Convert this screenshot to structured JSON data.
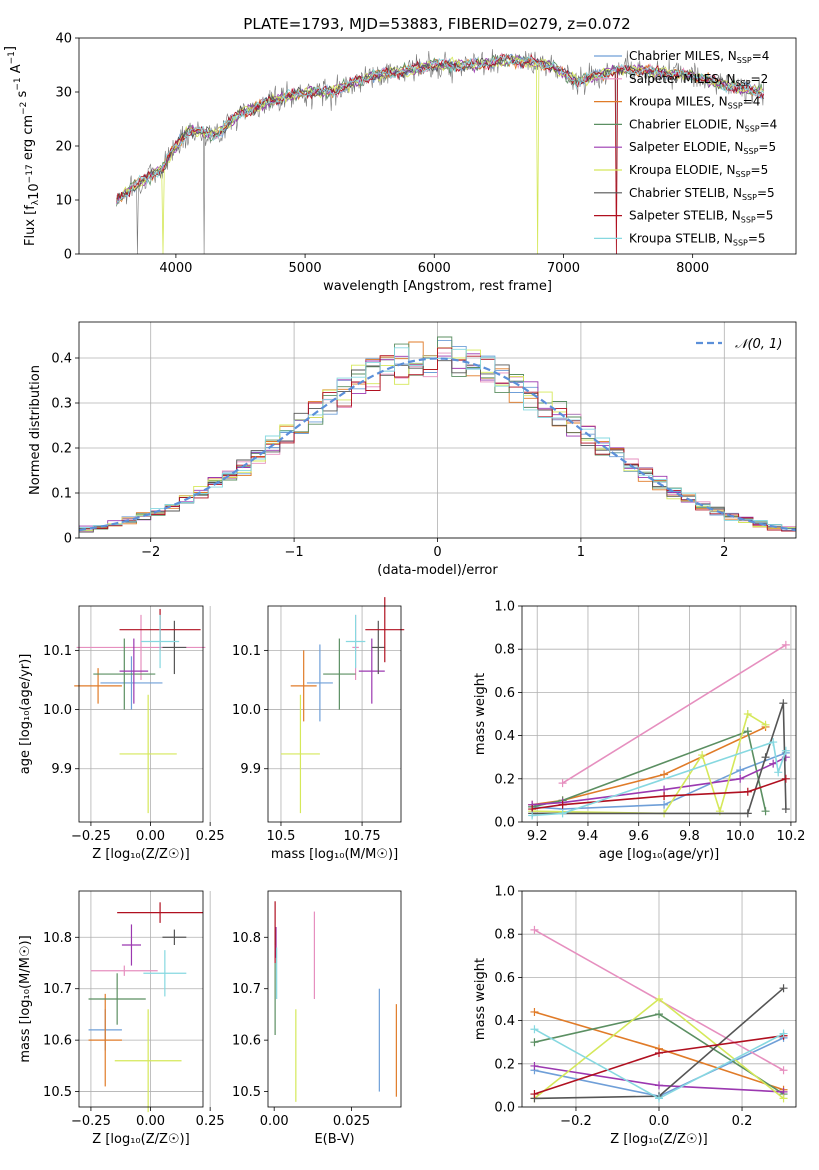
{
  "figure_title": "PLATE=1793, MJD=53883, FIBERID=0279, z=0.072",
  "model_colors": [
    "#6f9fd8",
    "#e68fbf",
    "#e07b28",
    "#5b8f62",
    "#9b38b0",
    "#d5e85a",
    "#555555",
    "#b01020",
    "#86d8e0"
  ],
  "legend_models": [
    {
      "name": "Chabrier MILES",
      "nssp": "4"
    },
    {
      "name": "Salpeter MILES",
      "nssp": "2"
    },
    {
      "name": "Kroupa MILES",
      "nssp": "4"
    },
    {
      "name": "Chabrier ELODIE",
      "nssp": "4"
    },
    {
      "name": "Salpeter ELODIE",
      "nssp": "5"
    },
    {
      "name": "Kroupa ELODIE",
      "nssp": "5"
    },
    {
      "name": "Chabrier STELIB",
      "nssp": "5"
    },
    {
      "name": "Salpeter STELIB",
      "nssp": "5"
    },
    {
      "name": "Kroupa STELIB",
      "nssp": "5"
    }
  ],
  "chart_data": [
    {
      "id": "spectrum",
      "type": "line",
      "xlabel": "wavelength [Angstrom, rest frame]",
      "ylabel": "Flux [f",
      "xlim": [
        3250,
        8800
      ],
      "ylim": [
        0,
        40
      ],
      "xticks": [
        4000,
        5000,
        6000,
        7000,
        8000
      ],
      "yticks": [
        0,
        10,
        20,
        30,
        40
      ],
      "grid": false,
      "legend": "right",
      "continuum": [
        [
          3540,
          10
        ],
        [
          3700,
          13
        ],
        [
          3900,
          16
        ],
        [
          4000,
          20
        ],
        [
          4100,
          23
        ],
        [
          4300,
          22
        ],
        [
          4500,
          26
        ],
        [
          4700,
          28
        ],
        [
          5000,
          30
        ],
        [
          5200,
          30
        ],
        [
          5500,
          33
        ],
        [
          5800,
          34
        ],
        [
          6000,
          35
        ],
        [
          6300,
          35
        ],
        [
          6600,
          36
        ],
        [
          6900,
          35
        ],
        [
          7100,
          32
        ],
        [
          7400,
          34
        ],
        [
          7600,
          34
        ],
        [
          8000,
          33
        ],
        [
          8300,
          31
        ],
        [
          8550,
          30
        ]
      ]
    },
    {
      "id": "residuals",
      "type": "histogram",
      "xlabel": "(data-model)/error",
      "ylabel": "Normed distribution",
      "xlim": [
        -2.5,
        2.5
      ],
      "ylim": [
        0,
        0.48
      ],
      "xticks": [
        -2,
        -1,
        0,
        1,
        2
      ],
      "yticks": [
        0,
        0.1,
        0.2,
        0.3,
        0.4
      ],
      "grid": true,
      "legend": "top-right",
      "reference_curve": "𝒩(0, 1)",
      "bin_edges": [
        -2.5,
        2.5
      ],
      "bins": 50
    },
    {
      "id": "age-vs-Z",
      "type": "scatter",
      "xlabel": "Z [log₁₀(Z/Z☉)]",
      "ylabel": "age  [log₁₀(age/yr)]",
      "xlim": [
        -0.3,
        0.22
      ],
      "ylim": [
        9.81,
        10.175
      ],
      "xticks": [
        -0.25,
        0,
        0.25
      ],
      "yticks": [
        9.9,
        10.0,
        10.1
      ],
      "grid": true,
      "points": [
        {
          "x": -0.08,
          "xerr": 0.13,
          "y": 10.045,
          "yerr": 0.045
        },
        {
          "x": -0.04,
          "xerr": 0.27,
          "y": 10.105,
          "yerr": 0.055
        },
        {
          "x": -0.22,
          "xerr": 0.1,
          "y": 10.04,
          "yerr": 0.03
        },
        {
          "x": -0.11,
          "xerr": 0.13,
          "y": 10.06,
          "yerr": 0.06
        },
        {
          "x": -0.07,
          "xerr": 0.06,
          "y": 10.065,
          "yerr": 0.055
        },
        {
          "x": -0.01,
          "xerr": 0.12,
          "y": 9.925,
          "yerr": 0.1
        },
        {
          "x": 0.1,
          "xerr": 0.05,
          "y": 10.105,
          "yerr": 0.045
        },
        {
          "x": 0.04,
          "xerr": 0.17,
          "y": 10.135,
          "yerr": 0.035
        },
        {
          "x": 0.04,
          "xerr": 0.08,
          "y": 10.115,
          "yerr": 0.045
        }
      ]
    },
    {
      "id": "age-vs-mass",
      "type": "scatter",
      "xlabel": "mass [log₁₀(M/M☉)]",
      "ylabel": "",
      "xlim": [
        10.46,
        10.87
      ],
      "ylim": [
        9.81,
        10.175
      ],
      "xticks": [
        10.5,
        10.75
      ],
      "yticks": [
        9.9,
        10.0,
        10.1
      ],
      "grid": true,
      "points": [
        {
          "x": 10.62,
          "xerr": 0.04,
          "y": 10.045,
          "yerr": 0.065
        },
        {
          "x": 10.73,
          "xerr": 0.01,
          "y": 10.105,
          "yerr": 0.055
        },
        {
          "x": 10.57,
          "xerr": 0.04,
          "y": 10.04,
          "yerr": 0.06
        },
        {
          "x": 10.68,
          "xerr": 0.05,
          "y": 10.06,
          "yerr": 0.06
        },
        {
          "x": 10.78,
          "xerr": 0.04,
          "y": 10.065,
          "yerr": 0.055
        },
        {
          "x": 10.56,
          "xerr": 0.06,
          "y": 9.925,
          "yerr": 0.1
        },
        {
          "x": 10.8,
          "xerr": 0.02,
          "y": 10.105,
          "yerr": 0.045
        },
        {
          "x": 10.82,
          "xerr": 0.06,
          "y": 10.135,
          "yerr": 0.055
        },
        {
          "x": 10.73,
          "xerr": 0.03,
          "y": 10.115,
          "yerr": 0.045
        }
      ]
    },
    {
      "id": "weight-vs-age",
      "type": "line",
      "xlabel": "age  [log₁₀(age/yr)]",
      "ylabel": "mass weight",
      "xlim": [
        9.14,
        10.22
      ],
      "ylim": [
        0,
        1
      ],
      "xticks": [
        9.2,
        9.4,
        9.6,
        9.8,
        10.0,
        10.2
      ],
      "yticks": [
        0,
        0.2,
        0.4,
        0.6,
        0.8,
        1.0
      ],
      "grid": true,
      "series": [
        {
          "x": [
            9.18,
            9.3,
            9.7,
            10.0,
            10.18
          ],
          "y": [
            0.07,
            0.06,
            0.08,
            0.24,
            0.32
          ]
        },
        {
          "x": [
            9.3,
            10.18
          ],
          "y": [
            0.18,
            0.82
          ]
        },
        {
          "x": [
            9.18,
            9.3,
            9.7,
            10.1
          ],
          "y": [
            0.08,
            0.1,
            0.22,
            0.44
          ]
        },
        {
          "x": [
            9.18,
            9.3,
            10.03,
            10.1
          ],
          "y": [
            0.07,
            0.1,
            0.42,
            0.05
          ]
        },
        {
          "x": [
            9.18,
            9.3,
            9.7,
            10.0,
            10.13,
            10.18
          ],
          "y": [
            0.08,
            0.09,
            0.15,
            0.2,
            0.27,
            0.3
          ]
        },
        {
          "x": [
            9.18,
            9.7,
            9.85,
            9.92,
            10.03,
            10.1
          ],
          "y": [
            0.05,
            0.04,
            0.31,
            0.05,
            0.5,
            0.45
          ]
        },
        {
          "x": [
            9.18,
            10.03,
            10.1,
            10.17,
            10.18
          ],
          "y": [
            0.04,
            0.04,
            0.3,
            0.55,
            0.06
          ]
        },
        {
          "x": [
            9.18,
            9.3,
            9.7,
            10.03,
            10.18
          ],
          "y": [
            0.06,
            0.08,
            0.12,
            0.14,
            0.2
          ]
        },
        {
          "x": [
            9.18,
            9.3,
            10.13,
            10.15,
            10.18
          ],
          "y": [
            0.03,
            0.04,
            0.37,
            0.23,
            0.33
          ]
        }
      ]
    },
    {
      "id": "mass-vs-Z",
      "type": "scatter",
      "xlabel": "Z [log₁₀(Z/Z☉)]",
      "ylabel": "mass [log₁₀(M/M☉)]",
      "xlim": [
        -0.3,
        0.22
      ],
      "ylim": [
        10.47,
        10.89
      ],
      "xticks": [
        -0.25,
        0,
        0.25
      ],
      "yticks": [
        10.5,
        10.6,
        10.7,
        10.8
      ],
      "grid": true,
      "points": [
        {
          "x": -0.19,
          "xerr": 0.07,
          "y": 10.62,
          "yerr": 0.04
        },
        {
          "x": -0.11,
          "xerr": 0.14,
          "y": 10.735,
          "yerr": 0.01
        },
        {
          "x": -0.19,
          "xerr": 0.07,
          "y": 10.6,
          "yerr": 0.09
        },
        {
          "x": -0.14,
          "xerr": 0.12,
          "y": 10.68,
          "yerr": 0.05
        },
        {
          "x": -0.08,
          "xerr": 0.04,
          "y": 10.785,
          "yerr": 0.04
        },
        {
          "x": -0.01,
          "xerr": 0.14,
          "y": 10.56,
          "yerr": 0.1
        },
        {
          "x": 0.1,
          "xerr": 0.05,
          "y": 10.8,
          "yerr": 0.015
        },
        {
          "x": 0.04,
          "xerr": 0.18,
          "y": 10.848,
          "yerr": 0.02
        },
        {
          "x": 0.06,
          "xerr": 0.09,
          "y": 10.73,
          "yerr": 0.045
        }
      ]
    },
    {
      "id": "mass-vs-ebv",
      "type": "scatter",
      "xlabel": "E(B-V)",
      "ylabel": "",
      "xlim": [
        -0.002,
        0.041
      ],
      "ylim": [
        10.47,
        10.89
      ],
      "xticks": [
        0,
        0.025
      ],
      "yticks": [
        10.5,
        10.6,
        10.7,
        10.8
      ],
      "grid": false,
      "points": [
        {
          "x": 0.034,
          "xerr": 0,
          "y": 10.6,
          "yerr": 0.1
        },
        {
          "x": 0.013,
          "xerr": 0,
          "y": 10.765,
          "yerr": 0.085
        },
        {
          "x": 0.0395,
          "xerr": 0,
          "y": 10.58,
          "yerr": 0.09
        },
        {
          "x": 0.0003,
          "xerr": 0,
          "y": 10.68,
          "yerr": 0.07
        },
        {
          "x": 0.0006,
          "xerr": 0,
          "y": 10.79,
          "yerr": 0.03
        },
        {
          "x": 0.007,
          "xerr": 0,
          "y": 10.57,
          "yerr": 0.09
        },
        {
          "x": 0.0003,
          "xerr": 0,
          "y": 10.8,
          "yerr": 0.015
        },
        {
          "x": 0.0003,
          "xerr": 0,
          "y": 10.81,
          "yerr": 0.06
        },
        {
          "x": 0.0008,
          "xerr": 0,
          "y": 10.73,
          "yerr": 0.05
        }
      ]
    },
    {
      "id": "weight-vs-Z",
      "type": "line",
      "xlabel": "Z [log₁₀(Z/Z☉)]",
      "ylabel": "mass weight",
      "xlim": [
        -0.33,
        0.33
      ],
      "ylim": [
        0,
        1
      ],
      "xticks": [
        -0.2,
        0,
        0.2
      ],
      "yticks": [
        0,
        0.2,
        0.4,
        0.6,
        0.8,
        1.0
      ],
      "grid": true,
      "series": [
        {
          "x": [
            -0.3,
            0.0,
            0.3
          ],
          "y": [
            0.17,
            0.05,
            0.32
          ]
        },
        {
          "x": [
            -0.3,
            0.3
          ],
          "y": [
            0.82,
            0.17
          ]
        },
        {
          "x": [
            -0.3,
            0.0,
            0.3
          ],
          "y": [
            0.44,
            0.27,
            0.08
          ]
        },
        {
          "x": [
            -0.3,
            0.0,
            0.3
          ],
          "y": [
            0.3,
            0.43,
            0.06
          ]
        },
        {
          "x": [
            -0.3,
            0.0,
            0.3
          ],
          "y": [
            0.19,
            0.1,
            0.07
          ]
        },
        {
          "x": [
            -0.3,
            0.0,
            0.3
          ],
          "y": [
            0.04,
            0.5,
            0.04
          ]
        },
        {
          "x": [
            -0.3,
            0.0,
            0.3
          ],
          "y": [
            0.04,
            0.05,
            0.55
          ]
        },
        {
          "x": [
            -0.3,
            0.0,
            0.3
          ],
          "y": [
            0.06,
            0.25,
            0.33
          ]
        },
        {
          "x": [
            -0.3,
            0.0,
            0.3
          ],
          "y": [
            0.36,
            0.04,
            0.34
          ]
        }
      ]
    }
  ]
}
